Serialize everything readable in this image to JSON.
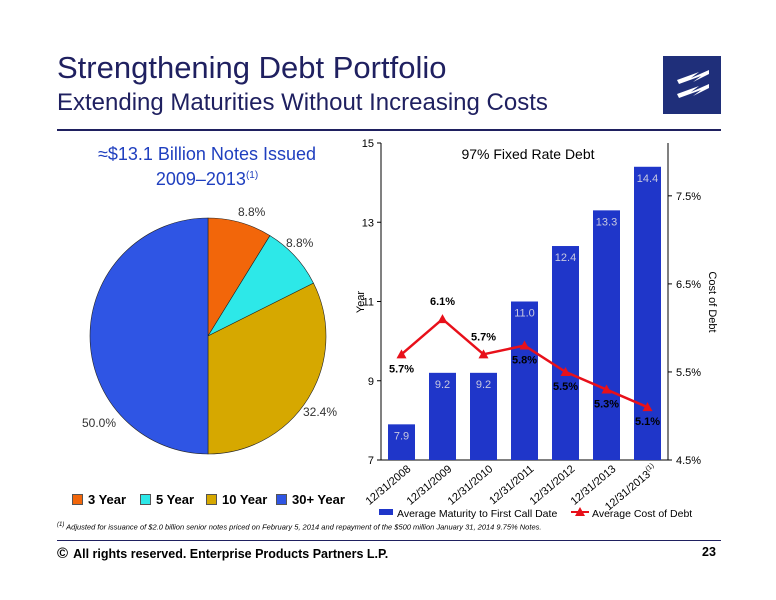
{
  "slide": {
    "title": "Strengthening Debt Portfolio",
    "subtitle": "Extending Maturities Without Increasing Costs",
    "pie_title_line1": "≈$13.1 Billion Notes Issued",
    "pie_title_line2": "2009–2013",
    "pie_title_sup": "(1)",
    "footnote_marker": "(1)",
    "footnote_text": " Adjusted for issuance of $2.0 billion senior notes priced on February 5, 2014 and repayment of the $500 million January 31, 2014 9.75% Notes.",
    "copyright_symbol": "©",
    "copyright_text": "All rights reserved. Enterprise Products Partners L.P.",
    "page_number": "23"
  },
  "chart_data": [
    {
      "type": "pie",
      "title": "≈$13.1 Billion Notes Issued 2009–2013(1)",
      "slices": [
        {
          "name": "3 Year",
          "value": 8.8,
          "label": "8.8%",
          "color": "#f2660a"
        },
        {
          "name": "5 Year",
          "value": 8.8,
          "label": "8.8%",
          "color": "#2de8e8"
        },
        {
          "name": "10 Year",
          "value": 32.4,
          "label": "32.4%",
          "color": "#d6a800"
        },
        {
          "name": "30+ Year",
          "value": 50.0,
          "label": "50.0%",
          "color": "#2f55e4"
        }
      ],
      "legend": [
        "3 Year",
        "5 Year",
        "10 Year",
        "30+ Year"
      ],
      "legend_position": "bottom"
    },
    {
      "type": "bar",
      "title": "97% Fixed Rate Debt",
      "categories": [
        "12/31/2008",
        "12/31/2009",
        "12/31/2010",
        "12/31/2011",
        "12/31/2012",
        "12/31/2013",
        "12/31/2013"
      ],
      "category_sup": [
        "",
        "",
        "",
        "",
        "",
        "",
        "(1)"
      ],
      "series": [
        {
          "name": "Average Maturity to First Call Date",
          "type": "bar",
          "axis": "left",
          "color": "#1f36c9",
          "values": [
            7.9,
            9.2,
            9.2,
            11.0,
            12.4,
            13.3,
            14.4
          ],
          "labels": [
            "7.9",
            "9.2",
            "9.2",
            "11.0",
            "12.4",
            "13.3",
            "14.4"
          ]
        },
        {
          "name": "Average Cost of Debt",
          "type": "line",
          "axis": "right",
          "color": "#e8101a",
          "values": [
            5.7,
            6.1,
            5.7,
            5.8,
            5.5,
            5.3,
            5.1
          ],
          "labels": [
            "5.7%",
            "6.1%",
            "5.7%",
            "5.8%",
            "5.5%",
            "5.3%",
            "5.1%"
          ]
        }
      ],
      "ylabel": "Year",
      "y2label": "Cost of Debt",
      "ylim": [
        7,
        15
      ],
      "yticks": [
        "7",
        "9",
        "11",
        "13",
        "15"
      ],
      "y2lim": [
        4.5,
        8.1
      ],
      "y2ticks": [
        "4.5%",
        "5.5%",
        "6.5%",
        "7.5%"
      ],
      "legend_position": "bottom",
      "grid": false
    }
  ]
}
